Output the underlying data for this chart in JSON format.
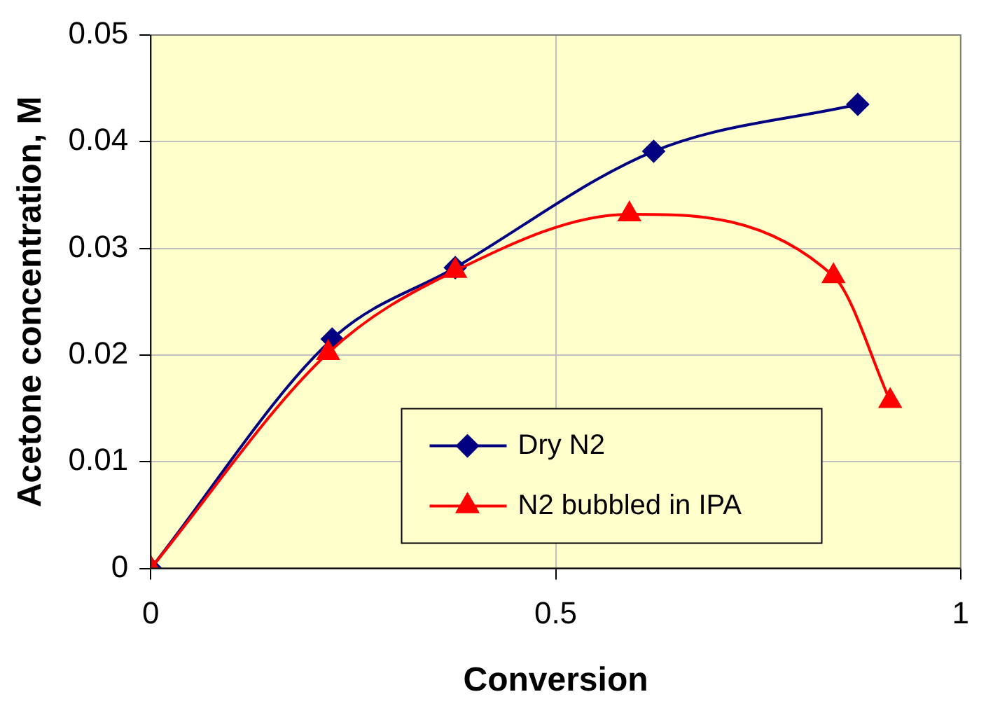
{
  "chart_data": {
    "type": "line",
    "xlabel": "Conversion",
    "ylabel": "Acetone concentration, M",
    "xlim": [
      0,
      1
    ],
    "xticks": [
      0,
      0.5,
      1
    ],
    "ylim": [
      0,
      0.05
    ],
    "yticks": [
      0,
      0.01,
      0.02,
      0.03,
      0.04,
      0.05
    ],
    "grid": true,
    "legend": "bottom",
    "series": [
      {
        "name": "Dry N2",
        "color": "#000080",
        "marker": "diamond",
        "x": [
          0,
          0.224,
          0.376,
          0.621,
          0.873
        ],
        "values": [
          0,
          0.0215,
          0.0282,
          0.0391,
          0.0435
        ]
      },
      {
        "name": "N2 bubbled in IPA",
        "color": "#ff0000",
        "marker": "triangle",
        "x": [
          0,
          0.219,
          0.376,
          0.591,
          0.843,
          0.913
        ],
        "values": [
          0,
          0.0202,
          0.0279,
          0.0332,
          0.0274,
          0.0157
        ]
      }
    ]
  }
}
